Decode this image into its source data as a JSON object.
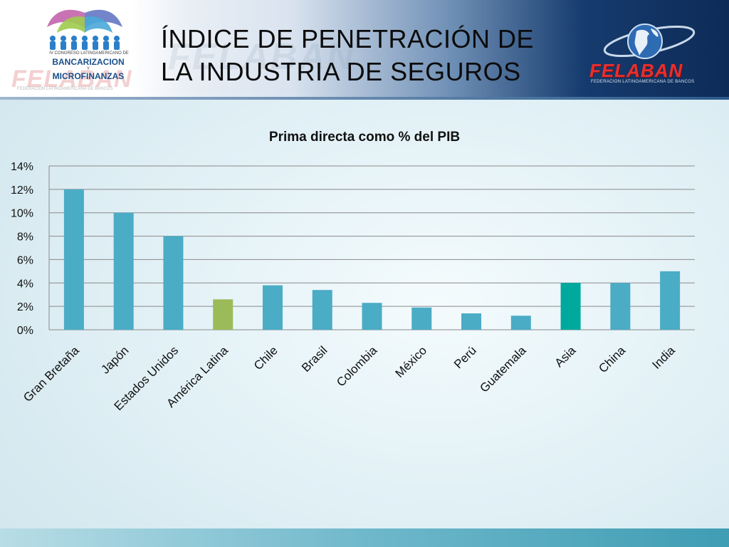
{
  "slide": {
    "title_line1": "ÍNDICE DE PENETRACIÓN DE",
    "title_line2": "LA INDUSTRIA DE SEGUROS",
    "watermark": "FELABAN"
  },
  "logo_left": {
    "small_text": "IV CONGRESO LATINOAMERICANO DE",
    "big_text_1": "BANCARIZACION",
    "y_text": "Y",
    "big_text_2": "MICROFINANZAS",
    "bg_word": "FELABAN",
    "fed_line": "FEDERACION LATINOAMERICANA DE BANCOS"
  },
  "logo_right": {
    "word": "FELABAN",
    "sub": "FEDERACION LATINOAMERICANA DE BANCOS"
  },
  "chart_data": {
    "type": "bar",
    "title": "Prima directa como % del PIB",
    "categories": [
      "Gran Bretaña",
      "Japón",
      "Estados Unidos",
      "América Latina",
      "Chile",
      "Brasil",
      "Colombia",
      "México",
      "Perú",
      "Guatemala",
      "Asia",
      "China",
      "India"
    ],
    "values": [
      12,
      10,
      8,
      2.6,
      3.8,
      3.4,
      2.3,
      1.9,
      1.4,
      1.2,
      4.0,
      4.0,
      5.0
    ],
    "colors": [
      "#4bacc6",
      "#4bacc6",
      "#4bacc6",
      "#9bbb59",
      "#4bacc6",
      "#4bacc6",
      "#4bacc6",
      "#4bacc6",
      "#4bacc6",
      "#4bacc6",
      "#00a99d",
      "#4bacc6",
      "#4bacc6"
    ],
    "yticks": [
      "0%",
      "2%",
      "4%",
      "6%",
      "8%",
      "10%",
      "12%",
      "14%"
    ],
    "ylim": [
      0,
      14
    ],
    "grid": true,
    "xlabel": "",
    "ylabel": ""
  },
  "colors": {
    "header_dark": "#0d2b57",
    "bar_default": "#4bacc6",
    "bar_latam": "#9bbb59",
    "bar_asia": "#00a99d"
  }
}
